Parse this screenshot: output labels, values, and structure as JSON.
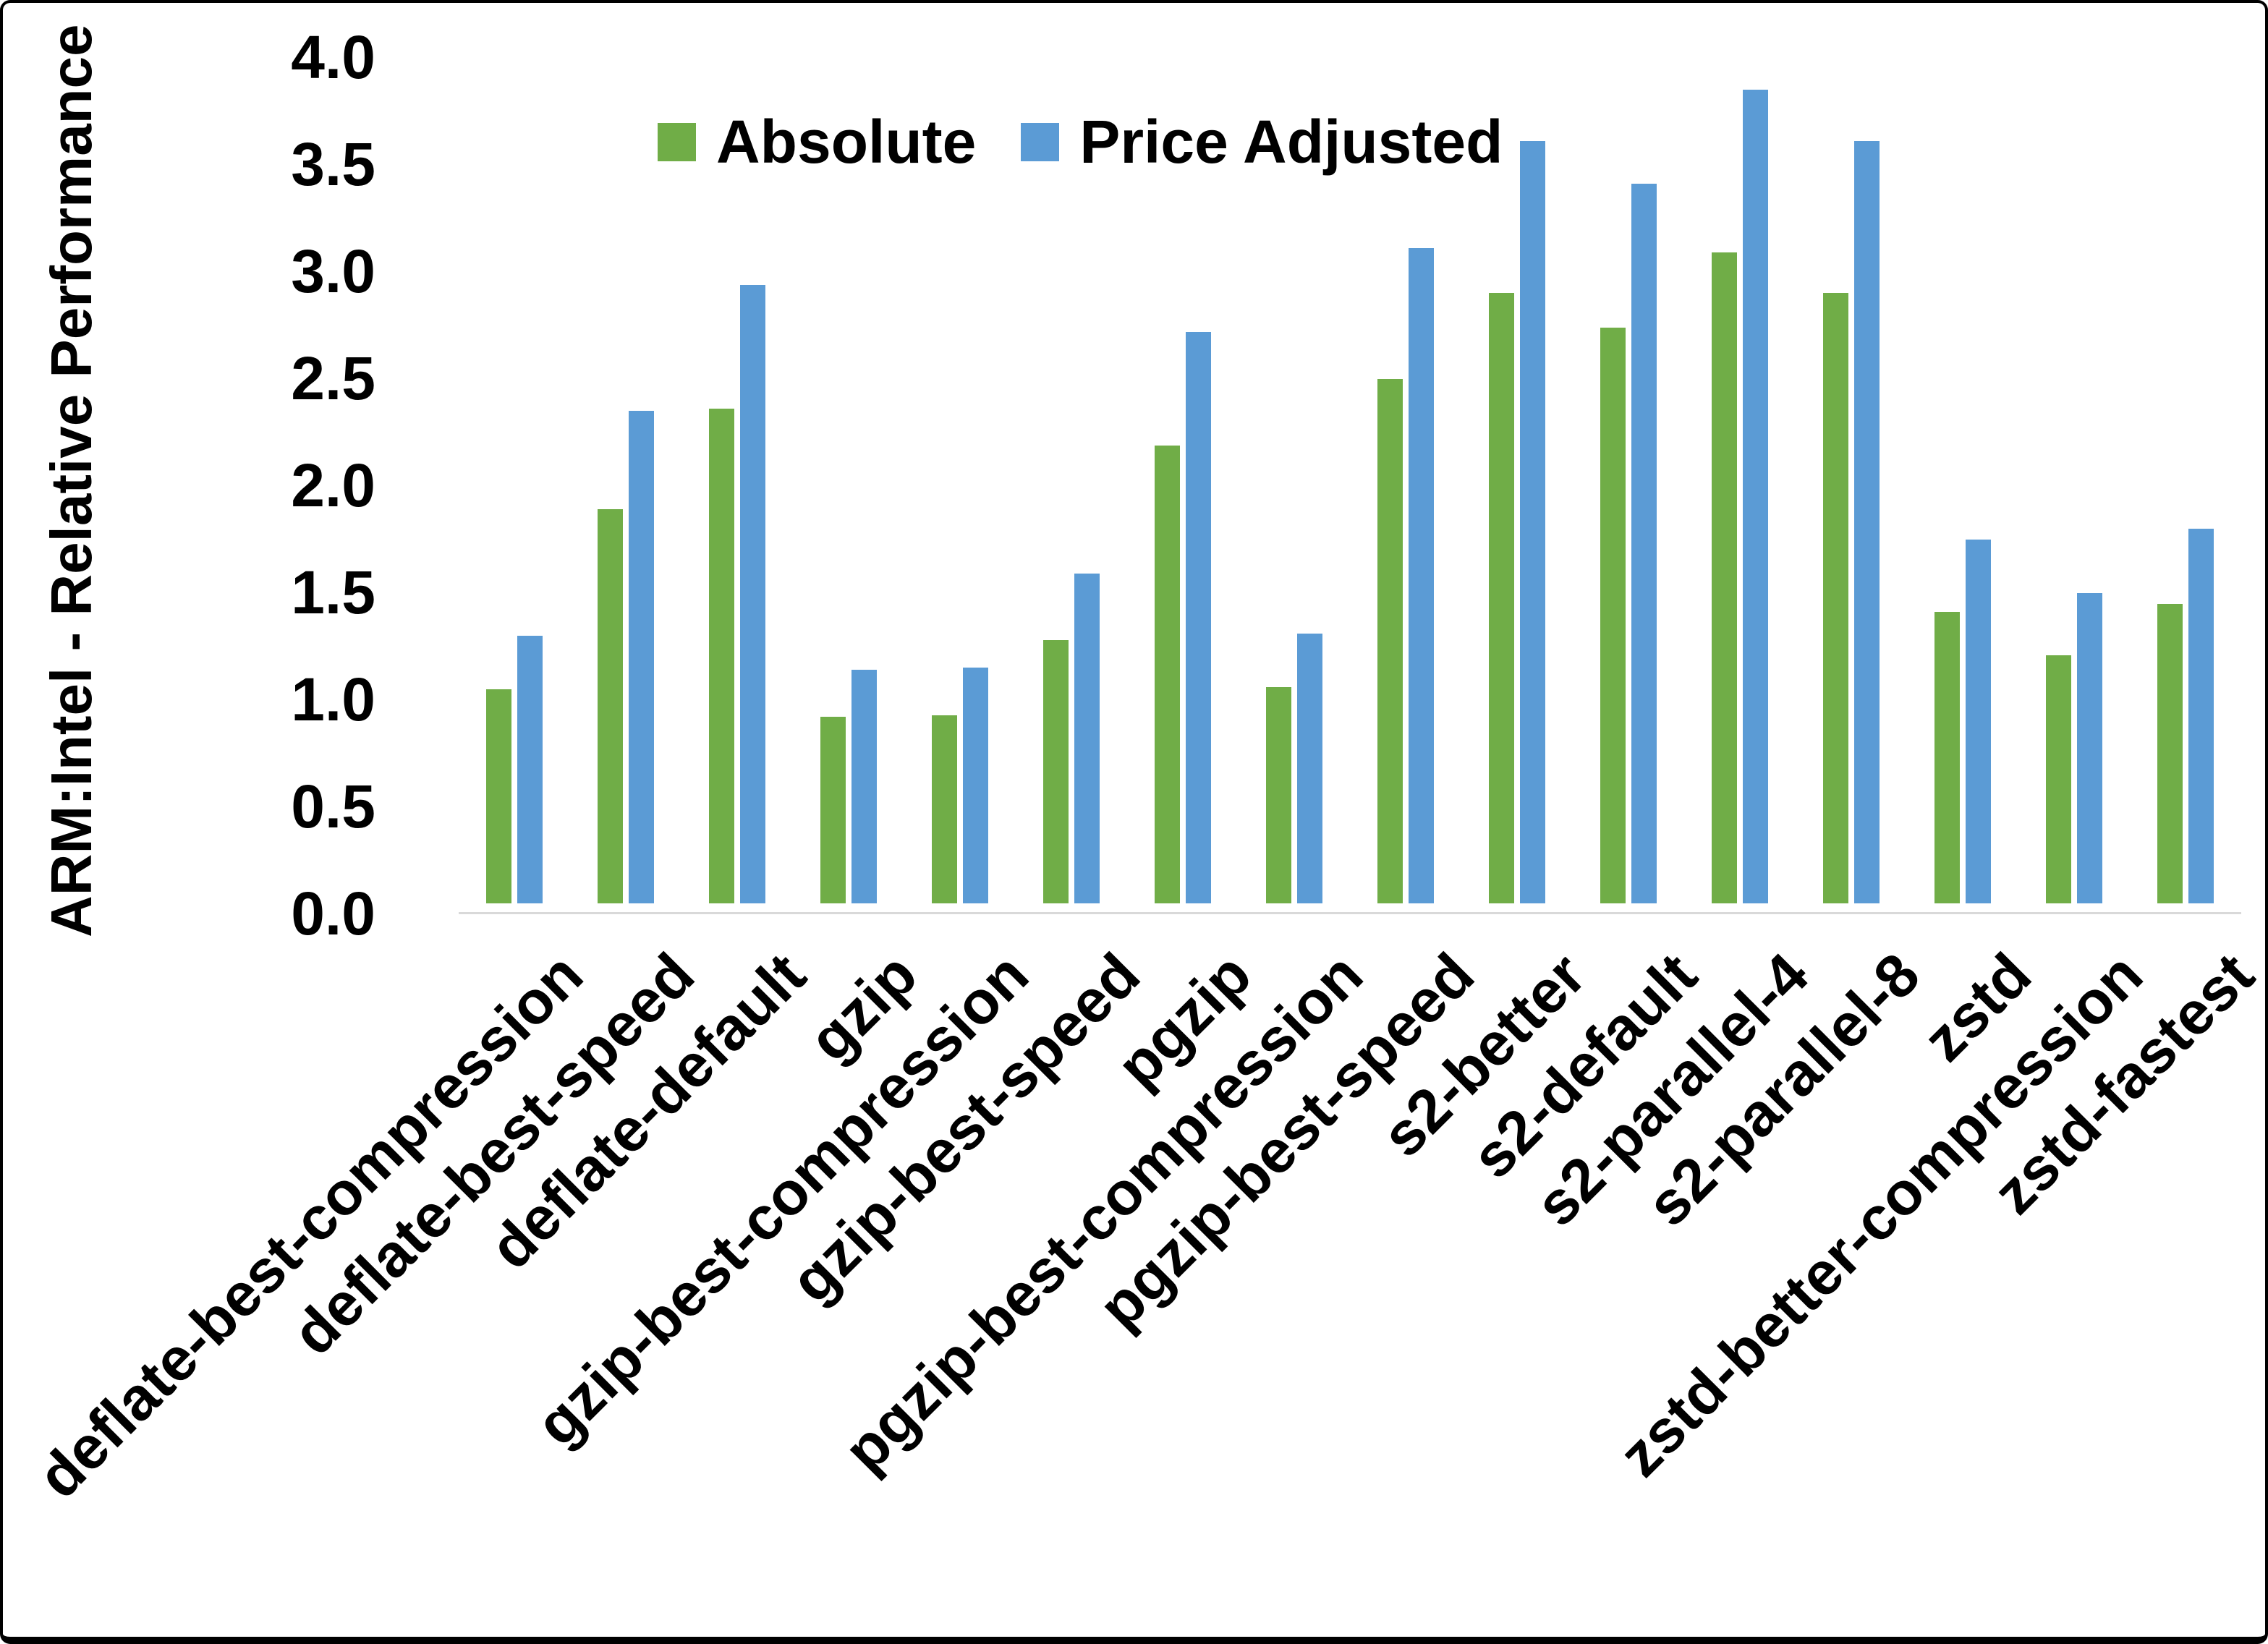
{
  "chart_data": {
    "type": "bar",
    "title": "",
    "xlabel": "",
    "ylabel": "ARM:Intel - Relative Performance",
    "ylim": [
      0.0,
      4.0
    ],
    "ytick_step": 0.5,
    "yticks": [
      "0.0",
      "0.5",
      "1.0",
      "1.5",
      "2.0",
      "2.5",
      "3.0",
      "3.5",
      "4.0"
    ],
    "grid": false,
    "legend_position": "top-center",
    "categories": [
      "deflate-best-compression",
      "deflate-best-speed",
      "deflate-default",
      "gzip",
      "gzip-best-compression",
      "gzip-best-speed",
      "pgzip",
      "pgzip-best-compression",
      "pgzip-best-speed",
      "s2-better",
      "s2-default",
      "s2-parallel-4",
      "s2-parallel-8",
      "zstd",
      "zstd-better-compression",
      "zstd-fastest"
    ],
    "series": [
      {
        "name": "Absolute",
        "color": "#70AD47",
        "values": [
          1.0,
          1.84,
          2.31,
          0.87,
          0.88,
          1.23,
          2.14,
          1.01,
          2.45,
          2.85,
          2.69,
          3.04,
          2.85,
          1.36,
          1.16,
          1.4
        ]
      },
      {
        "name": "Price Adjusted",
        "color": "#5B9BD5",
        "values": [
          1.25,
          2.3,
          2.89,
          1.09,
          1.1,
          1.54,
          2.67,
          1.26,
          3.06,
          3.56,
          3.36,
          3.8,
          3.56,
          1.7,
          1.45,
          1.75
        ]
      }
    ],
    "axis_line_color": "#D9D9D9",
    "text_color": "#000000",
    "frame_border_color": "#000000"
  }
}
